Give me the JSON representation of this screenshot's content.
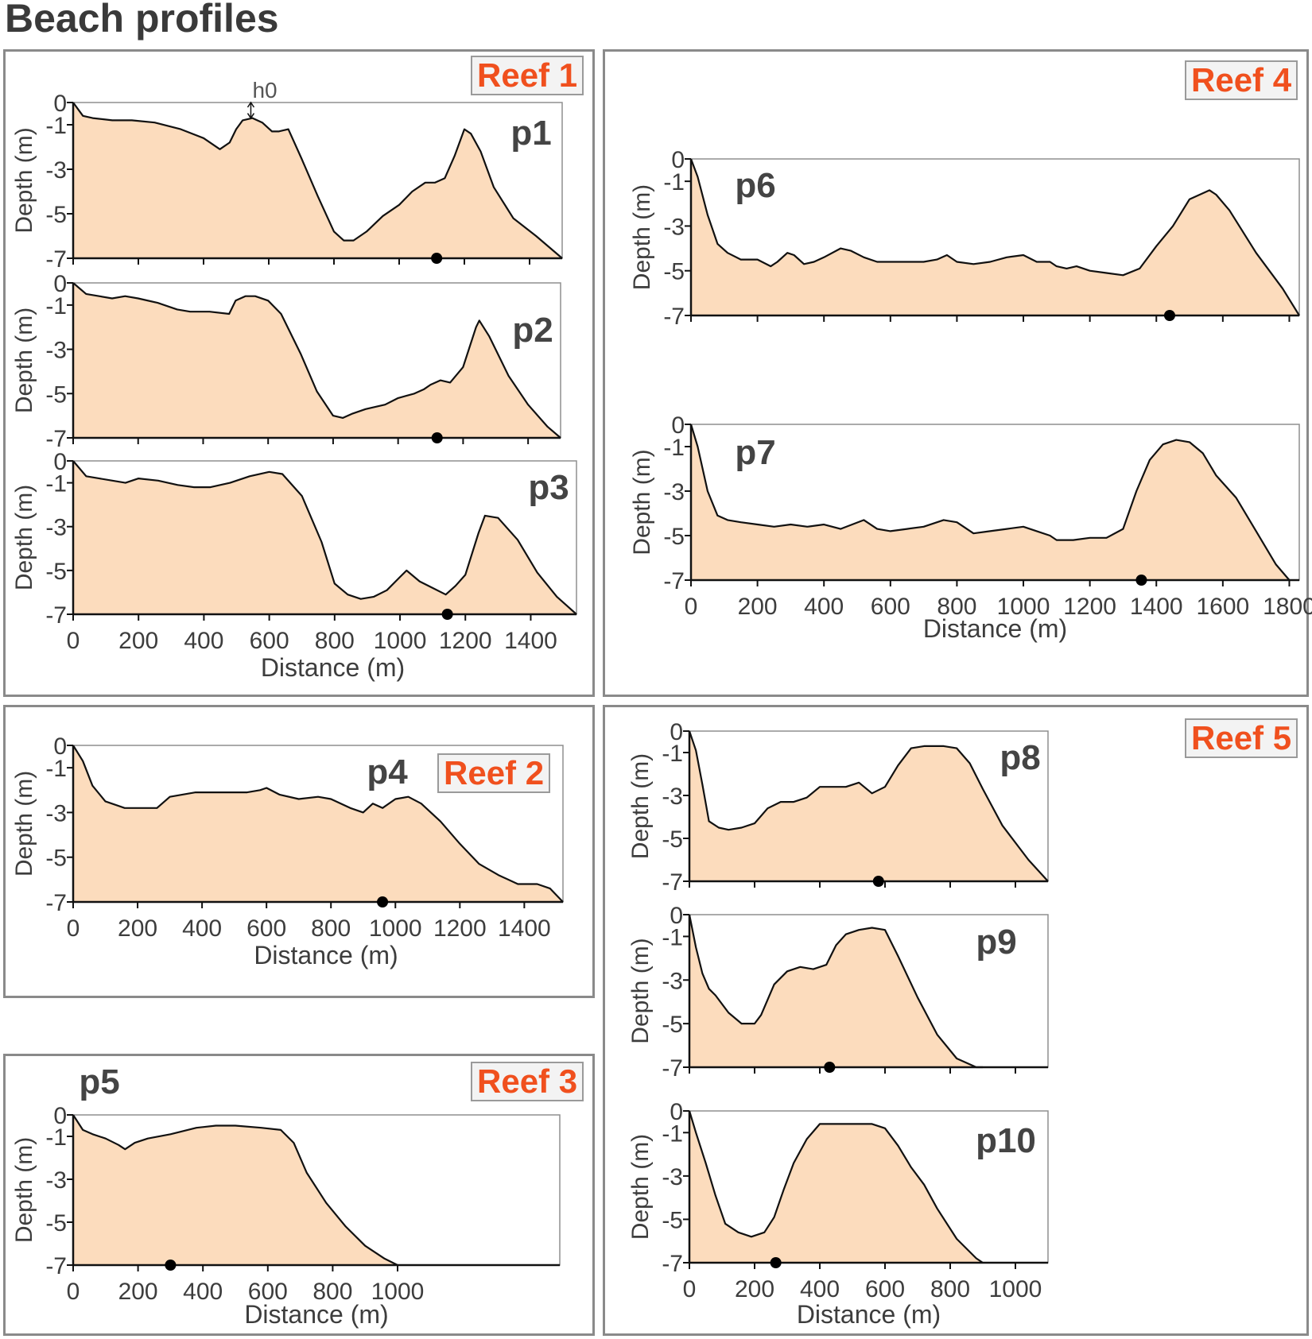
{
  "figure_title": "Beach profiles",
  "colors": {
    "fill": "#fcdcbd",
    "line": "#111111",
    "reef_label_text": "#f0501e",
    "frame": "#8a8a8a",
    "text": "#3d3d3d"
  },
  "reef_labels": {
    "r1": "Reef 1",
    "r2": "Reef 2",
    "r3": "Reef 3",
    "r4": "Reef 4",
    "r5": "Reef 5"
  },
  "annotation": {
    "text": "h0",
    "profile": "p1",
    "x": 545,
    "depth_top": 0,
    "depth_bottom": -0.7
  },
  "chart_data": [
    {
      "id": "p1",
      "type": "area",
      "title": "p1",
      "reef": "Reef 1",
      "ylabel": "Depth (m)",
      "xlabel": "",
      "xlim": [
        0,
        1500
      ],
      "ylim": [
        -7,
        0
      ],
      "yticks": [
        0,
        -1,
        -3,
        -5,
        -7
      ],
      "ytick_labels": [
        "0",
        "-1",
        "-3",
        "-5",
        "-7"
      ],
      "xticks": [
        0,
        200,
        400,
        600,
        800,
        1000,
        1200,
        1400
      ],
      "xtick_labels": [],
      "x": [
        0,
        30,
        60,
        120,
        180,
        250,
        330,
        400,
        450,
        480,
        500,
        520,
        550,
        580,
        610,
        630,
        660,
        700,
        750,
        800,
        830,
        860,
        900,
        950,
        1000,
        1040,
        1080,
        1110,
        1140,
        1170,
        1200,
        1220,
        1250,
        1290,
        1350,
        1420,
        1500
      ],
      "depth": [
        0,
        -0.6,
        -0.7,
        -0.8,
        -0.8,
        -0.9,
        -1.2,
        -1.6,
        -2.1,
        -1.8,
        -1.2,
        -0.8,
        -0.7,
        -0.9,
        -1.3,
        -1.3,
        -1.2,
        -2.5,
        -4.2,
        -5.8,
        -6.2,
        -6.2,
        -5.8,
        -5.1,
        -4.6,
        -4.0,
        -3.6,
        -3.6,
        -3.4,
        -2.4,
        -1.2,
        -1.4,
        -2.2,
        -3.8,
        -5.2,
        -6.0,
        -7.0
      ],
      "marker": {
        "x": 1115,
        "depth": -7
      }
    },
    {
      "id": "p2",
      "type": "area",
      "title": "p2",
      "reef": "Reef 1",
      "ylabel": "Depth (m)",
      "xlabel": "",
      "xlim": [
        0,
        1500
      ],
      "ylim": [
        -7,
        0
      ],
      "yticks": [
        0,
        -1,
        -3,
        -5,
        -7
      ],
      "ytick_labels": [
        "0",
        "-1",
        "-3",
        "-5",
        "-7"
      ],
      "xticks": [
        0,
        200,
        400,
        600,
        800,
        1000,
        1200,
        1400
      ],
      "xtick_labels": [],
      "x": [
        0,
        40,
        80,
        120,
        160,
        200,
        260,
        320,
        360,
        420,
        480,
        500,
        530,
        560,
        600,
        640,
        700,
        750,
        800,
        830,
        860,
        900,
        960,
        1000,
        1050,
        1080,
        1100,
        1130,
        1160,
        1200,
        1240,
        1250,
        1280,
        1340,
        1400,
        1460,
        1500
      ],
      "depth": [
        0,
        -0.5,
        -0.6,
        -0.7,
        -0.6,
        -0.7,
        -0.9,
        -1.2,
        -1.3,
        -1.3,
        -1.4,
        -0.8,
        -0.6,
        -0.6,
        -0.8,
        -1.4,
        -3.2,
        -4.9,
        -6.0,
        -6.1,
        -5.9,
        -5.7,
        -5.5,
        -5.2,
        -5.0,
        -4.8,
        -4.6,
        -4.4,
        -4.5,
        -3.8,
        -2.0,
        -1.7,
        -2.4,
        -4.2,
        -5.5,
        -6.5,
        -7.0
      ],
      "marker": {
        "x": 1120,
        "depth": -7
      }
    },
    {
      "id": "p3",
      "type": "area",
      "title": "p3",
      "reef": "Reef 1",
      "ylabel": "Depth (m)",
      "xlabel": "Distance (m)",
      "xlim": [
        0,
        1540
      ],
      "ylim": [
        -7,
        0
      ],
      "yticks": [
        0,
        -1,
        -3,
        -5,
        -7
      ],
      "ytick_labels": [
        "0",
        "-1",
        "-3",
        "-5",
        "-7"
      ],
      "xticks": [
        0,
        200,
        400,
        600,
        800,
        1000,
        1200,
        1400
      ],
      "xtick_labels": [
        "0",
        "200",
        "400",
        "600",
        "800",
        "1000",
        "1200",
        "1400"
      ],
      "x": [
        0,
        40,
        80,
        120,
        160,
        200,
        260,
        320,
        370,
        420,
        480,
        540,
        600,
        640,
        700,
        760,
        800,
        840,
        880,
        920,
        960,
        1000,
        1020,
        1060,
        1100,
        1140,
        1170,
        1200,
        1240,
        1260,
        1300,
        1360,
        1420,
        1480,
        1540
      ],
      "depth": [
        0,
        -0.7,
        -0.8,
        -0.9,
        -1.0,
        -0.8,
        -0.9,
        -1.1,
        -1.2,
        -1.2,
        -1.0,
        -0.7,
        -0.5,
        -0.6,
        -1.6,
        -3.7,
        -5.6,
        -6.1,
        -6.3,
        -6.2,
        -5.9,
        -5.3,
        -5.0,
        -5.5,
        -5.8,
        -6.1,
        -5.7,
        -5.2,
        -3.3,
        -2.5,
        -2.6,
        -3.6,
        -5.1,
        -6.2,
        -7.0
      ],
      "marker": {
        "x": 1145,
        "depth": -7
      }
    },
    {
      "id": "p4",
      "type": "area",
      "title": "p4",
      "reef": "Reef 2",
      "ylabel": "Depth (m)",
      "xlabel": "Distance (m)",
      "xlim": [
        0,
        1520
      ],
      "ylim": [
        -7,
        0
      ],
      "yticks": [
        0,
        -1,
        -3,
        -5,
        -7
      ],
      "ytick_labels": [
        "0",
        "-1",
        "-3",
        "-5",
        "-7"
      ],
      "xticks": [
        0,
        200,
        400,
        600,
        800,
        1000,
        1200,
        1400
      ],
      "xtick_labels": [
        "0",
        "200",
        "400",
        "600",
        "800",
        "1000",
        "1200",
        "1400"
      ],
      "x": [
        0,
        30,
        60,
        100,
        160,
        200,
        260,
        300,
        380,
        460,
        540,
        580,
        600,
        640,
        700,
        760,
        800,
        860,
        900,
        930,
        960,
        1000,
        1040,
        1080,
        1140,
        1200,
        1260,
        1320,
        1380,
        1440,
        1480,
        1520
      ],
      "depth": [
        0,
        -0.7,
        -1.8,
        -2.5,
        -2.8,
        -2.8,
        -2.8,
        -2.3,
        -2.1,
        -2.1,
        -2.1,
        -2.0,
        -1.9,
        -2.2,
        -2.4,
        -2.3,
        -2.4,
        -2.8,
        -3.0,
        -2.6,
        -2.8,
        -2.4,
        -2.3,
        -2.6,
        -3.4,
        -4.4,
        -5.3,
        -5.8,
        -6.2,
        -6.2,
        -6.4,
        -7.0
      ],
      "marker": {
        "x": 960,
        "depth": -7
      }
    },
    {
      "id": "p5",
      "type": "area",
      "title": "p5",
      "reef": "Reef 3",
      "ylabel": "Depth (m)",
      "xlabel": "Distance (m)",
      "xlim": [
        0,
        1500
      ],
      "ylim": [
        -7,
        0
      ],
      "yticks": [
        0,
        -1,
        -3,
        -5,
        -7
      ],
      "ytick_labels": [
        "0",
        "-1",
        "-3",
        "-5",
        "-7"
      ],
      "xticks": [
        0,
        200,
        400,
        600,
        800,
        1000
      ],
      "xtick_labels": [
        "0",
        "200",
        "400",
        "600",
        "800",
        "1000"
      ],
      "x": [
        0,
        30,
        60,
        100,
        140,
        160,
        190,
        230,
        300,
        380,
        440,
        500,
        580,
        640,
        680,
        720,
        780,
        840,
        900,
        960,
        1000
      ],
      "depth": [
        0,
        -0.7,
        -0.9,
        -1.1,
        -1.4,
        -1.6,
        -1.3,
        -1.1,
        -0.9,
        -0.6,
        -0.5,
        -0.5,
        -0.6,
        -0.7,
        -1.3,
        -2.7,
        -4.1,
        -5.2,
        -6.1,
        -6.7,
        -7.0
      ],
      "marker": {
        "x": 300,
        "depth": -7
      }
    },
    {
      "id": "p6",
      "type": "area",
      "title": "p6",
      "reef": "Reef 4",
      "ylabel": "Depth (m)",
      "xlabel": "",
      "xlim": [
        0,
        1830
      ],
      "ylim": [
        -7,
        0
      ],
      "yticks": [
        0,
        -1,
        -3,
        -5,
        -7
      ],
      "ytick_labels": [
        "0",
        "-1",
        "-3",
        "-5",
        "-7"
      ],
      "xticks": [
        0,
        200,
        400,
        600,
        800,
        1000,
        1200,
        1400,
        1600,
        1800
      ],
      "xtick_labels": [],
      "x": [
        0,
        20,
        50,
        80,
        110,
        150,
        200,
        240,
        260,
        290,
        310,
        340,
        370,
        400,
        450,
        480,
        520,
        560,
        600,
        650,
        700,
        740,
        770,
        800,
        850,
        900,
        950,
        1000,
        1040,
        1080,
        1100,
        1130,
        1160,
        1200,
        1250,
        1300,
        1350,
        1400,
        1450,
        1500,
        1560,
        1580,
        1620,
        1700,
        1780,
        1830
      ],
      "depth": [
        0,
        -0.8,
        -2.5,
        -3.8,
        -4.2,
        -4.5,
        -4.5,
        -4.8,
        -4.6,
        -4.2,
        -4.3,
        -4.7,
        -4.6,
        -4.4,
        -4.0,
        -4.1,
        -4.4,
        -4.6,
        -4.6,
        -4.6,
        -4.6,
        -4.5,
        -4.3,
        -4.6,
        -4.7,
        -4.6,
        -4.4,
        -4.3,
        -4.6,
        -4.6,
        -4.8,
        -4.9,
        -4.8,
        -5.0,
        -5.1,
        -5.2,
        -4.9,
        -3.9,
        -3.0,
        -1.8,
        -1.4,
        -1.6,
        -2.3,
        -4.2,
        -5.8,
        -7.0
      ],
      "marker": {
        "x": 1440,
        "depth": -7
      }
    },
    {
      "id": "p7",
      "type": "area",
      "title": "p7",
      "reef": "Reef 4",
      "ylabel": "Depth (m)",
      "xlabel": "Distance (m)",
      "xlim": [
        0,
        1830
      ],
      "ylim": [
        -7,
        0
      ],
      "yticks": [
        0,
        -1,
        -3,
        -5,
        -7
      ],
      "ytick_labels": [
        "0",
        "-1",
        "-3",
        "-5",
        "-7"
      ],
      "xticks": [
        0,
        200,
        400,
        600,
        800,
        1000,
        1200,
        1400,
        1600,
        1800
      ],
      "xtick_labels": [
        "0",
        "200",
        "400",
        "600",
        "800",
        "1000",
        "1200",
        "1400",
        "1600",
        "1800"
      ],
      "x": [
        0,
        20,
        50,
        80,
        110,
        150,
        200,
        250,
        300,
        350,
        400,
        450,
        520,
        560,
        600,
        650,
        700,
        760,
        800,
        850,
        900,
        950,
        1000,
        1040,
        1080,
        1100,
        1150,
        1200,
        1250,
        1300,
        1340,
        1380,
        1420,
        1460,
        1500,
        1540,
        1580,
        1640,
        1700,
        1760,
        1800
      ],
      "depth": [
        0,
        -1.0,
        -3.0,
        -4.1,
        -4.3,
        -4.4,
        -4.5,
        -4.6,
        -4.5,
        -4.6,
        -4.5,
        -4.7,
        -4.3,
        -4.7,
        -4.8,
        -4.7,
        -4.6,
        -4.3,
        -4.4,
        -4.9,
        -4.8,
        -4.7,
        -4.6,
        -4.8,
        -5.0,
        -5.2,
        -5.2,
        -5.1,
        -5.1,
        -4.7,
        -3.0,
        -1.6,
        -0.9,
        -0.7,
        -0.8,
        -1.3,
        -2.3,
        -3.3,
        -4.8,
        -6.3,
        -7.0
      ],
      "marker": {
        "x": 1355,
        "depth": -7
      }
    },
    {
      "id": "p8",
      "type": "area",
      "title": "p8",
      "reef": "Reef 5",
      "ylabel": "Depth (m)",
      "xlabel": "",
      "xlim": [
        0,
        1100
      ],
      "ylim": [
        -7,
        0
      ],
      "yticks": [
        0,
        -1,
        -3,
        -5,
        -7
      ],
      "ytick_labels": [
        "0",
        "-1",
        "-3",
        "-5",
        "-7"
      ],
      "xticks": [
        0,
        200,
        400,
        600,
        800,
        1000
      ],
      "xtick_labels": [],
      "x": [
        0,
        20,
        40,
        60,
        90,
        120,
        160,
        200,
        240,
        280,
        320,
        360,
        400,
        440,
        480,
        520,
        560,
        600,
        640,
        680,
        720,
        780,
        820,
        860,
        900,
        960,
        1040,
        1100
      ],
      "depth": [
        0,
        -0.9,
        -2.5,
        -4.2,
        -4.5,
        -4.6,
        -4.5,
        -4.3,
        -3.6,
        -3.3,
        -3.3,
        -3.1,
        -2.6,
        -2.6,
        -2.6,
        -2.4,
        -2.9,
        -2.6,
        -1.6,
        -0.8,
        -0.7,
        -0.7,
        -0.8,
        -1.5,
        -2.7,
        -4.4,
        -6.0,
        -7.0
      ],
      "marker": {
        "x": 580,
        "depth": -7
      }
    },
    {
      "id": "p9",
      "type": "area",
      "title": "p9",
      "reef": "Reef 5",
      "ylabel": "Depth (m)",
      "xlabel": "",
      "xlim": [
        0,
        1100
      ],
      "ylim": [
        -7,
        0
      ],
      "yticks": [
        0,
        -1,
        -3,
        -5,
        -7
      ],
      "ytick_labels": [
        "0",
        "-1",
        "-3",
        "-5",
        "-7"
      ],
      "xticks": [
        0,
        200,
        400,
        600,
        800,
        1000
      ],
      "xtick_labels": [],
      "x": [
        0,
        20,
        40,
        60,
        80,
        120,
        160,
        200,
        220,
        260,
        300,
        340,
        380,
        420,
        450,
        480,
        520,
        560,
        600,
        640,
        700,
        760,
        820,
        880,
        900
      ],
      "depth": [
        0,
        -1.5,
        -2.7,
        -3.4,
        -3.7,
        -4.5,
        -5.0,
        -5.0,
        -4.6,
        -3.2,
        -2.6,
        -2.4,
        -2.5,
        -2.3,
        -1.4,
        -0.9,
        -0.7,
        -0.6,
        -0.7,
        -1.9,
        -3.8,
        -5.5,
        -6.6,
        -7.0,
        -7.0
      ],
      "marker": {
        "x": 430,
        "depth": -7
      }
    },
    {
      "id": "p10",
      "type": "area",
      "title": "p10",
      "reef": "Reef 5",
      "ylabel": "Depth (m)",
      "xlabel": "Distance (m)",
      "xlim": [
        0,
        1100
      ],
      "ylim": [
        -7,
        0
      ],
      "yticks": [
        0,
        -1,
        -3,
        -5,
        -7
      ],
      "ytick_labels": [
        "0",
        "-1",
        "-3",
        "-5",
        "-7"
      ],
      "xticks": [
        0,
        200,
        400,
        600,
        800,
        1000
      ],
      "xtick_labels": [
        "0",
        "200",
        "400",
        "600",
        "800",
        "1000"
      ],
      "x": [
        0,
        20,
        50,
        80,
        110,
        150,
        190,
        230,
        260,
        290,
        320,
        360,
        400,
        440,
        480,
        520,
        560,
        600,
        640,
        680,
        720,
        760,
        820,
        880,
        900
      ],
      "depth": [
        0,
        -1.0,
        -2.4,
        -3.9,
        -5.2,
        -5.6,
        -5.8,
        -5.6,
        -4.9,
        -3.6,
        -2.4,
        -1.3,
        -0.6,
        -0.6,
        -0.6,
        -0.6,
        -0.6,
        -0.8,
        -1.6,
        -2.6,
        -3.4,
        -4.5,
        -5.9,
        -6.8,
        -7.0
      ],
      "marker": {
        "x": 265,
        "depth": -7
      }
    }
  ]
}
